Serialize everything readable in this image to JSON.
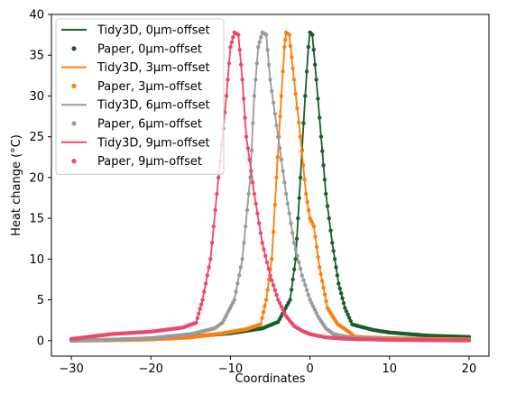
{
  "chart_data": {
    "type": "line",
    "title": "",
    "xlabel": "Coordinates",
    "ylabel": "Heat change (°C)",
    "xlim": [
      -32.5,
      22.5
    ],
    "ylim": [
      -1.9,
      40
    ],
    "xticks": [
      -30,
      -20,
      -10,
      0,
      10,
      20
    ],
    "yticks": [
      0,
      5,
      10,
      15,
      20,
      25,
      30,
      35,
      40
    ],
    "grid": false,
    "legend_position": "top-left",
    "colors": {
      "offset0": "#1a5e2e",
      "offset3": "#ff7f0e",
      "offset6": "#9a9a9a",
      "offset9": "#ea4a6a"
    },
    "series": [
      {
        "name": "Tidy3D, 0µm-offset",
        "kind": "line",
        "color": "#1a5e2e",
        "x": [
          -30,
          -25,
          -20,
          -15,
          -10,
          -6,
          -4,
          -2.5,
          -1.8,
          -1.2,
          -0.6,
          -0.2,
          0,
          0.3,
          0.8,
          1.4,
          2,
          2.8,
          3.6,
          4.4,
          5.3,
          6,
          8,
          10,
          15,
          20
        ],
        "y": [
          0.05,
          0.1,
          0.25,
          0.5,
          0.9,
          1.5,
          2.3,
          5,
          10,
          20,
          30,
          36,
          37.8,
          37.5,
          32,
          25,
          18,
          12,
          7,
          4,
          2,
          1.8,
          1.3,
          1,
          0.6,
          0.45
        ]
      },
      {
        "name": "Paper, 0µm-offset",
        "kind": "scatter",
        "color": "#1a5e2e",
        "x": [
          -30,
          -25,
          -20,
          -15,
          -10,
          -6,
          -4,
          -2.5,
          -1.8,
          -1.2,
          -0.6,
          -0.2,
          0,
          0.3,
          0.8,
          1.4,
          2,
          2.8,
          3.6,
          4.4,
          5.3,
          6,
          8,
          10,
          15,
          20
        ],
        "y": [
          0.05,
          0.1,
          0.25,
          0.5,
          0.9,
          1.5,
          2.3,
          5,
          10,
          20,
          30,
          36,
          37.8,
          37.5,
          32,
          25,
          18,
          12,
          7,
          4,
          2,
          1.8,
          1.3,
          1,
          0.6,
          0.45
        ]
      },
      {
        "name": "Tidy3D, 3µm-offset",
        "kind": "line",
        "color": "#ff7f0e",
        "x": [
          -30,
          -25,
          -20,
          -15,
          -11,
          -8,
          -6.2,
          -5.5,
          -4.8,
          -4.2,
          -3.6,
          -3.2,
          -3,
          -2.6,
          -2,
          -1.2,
          -0.5,
          0,
          0.5,
          1.2,
          2.2,
          3.5,
          5,
          5.6,
          7,
          10,
          15,
          20
        ],
        "y": [
          0,
          0.05,
          0.15,
          0.4,
          0.9,
          1.4,
          2,
          5,
          10,
          20,
          30,
          36,
          37.8,
          37.5,
          32,
          25,
          18,
          15,
          14,
          9,
          4,
          2,
          1,
          0.5,
          0.4,
          0.3,
          0.2,
          0.15
        ]
      },
      {
        "name": "Paper, 3µm-offset",
        "kind": "scatter",
        "color": "#ff7f0e",
        "x": [
          -30,
          -25,
          -20,
          -15,
          -11,
          -8,
          -6.2,
          -5.5,
          -4.8,
          -4.2,
          -3.6,
          -3.2,
          -3,
          -2.6,
          -2,
          -1.2,
          -0.5,
          0,
          0.5,
          1.2,
          2.2,
          3.5,
          5,
          5.6,
          7,
          10,
          15,
          20
        ],
        "y": [
          0,
          0.05,
          0.15,
          0.4,
          0.9,
          1.4,
          2,
          5,
          10,
          20,
          30,
          36,
          37.8,
          37.5,
          32,
          25,
          18,
          15,
          14,
          9,
          4,
          2,
          1,
          0.5,
          0.4,
          0.3,
          0.2,
          0.15
        ]
      },
      {
        "name": "Tidy3D, 6µm-offset",
        "kind": "line",
        "color": "#9a9a9a",
        "x": [
          -30,
          -25,
          -20,
          -15,
          -12,
          -11,
          -9.5,
          -8.5,
          -7.5,
          -7,
          -6.5,
          -6,
          -5.5,
          -5,
          -4,
          -3,
          -2,
          -1,
          0,
          1,
          2,
          3,
          5,
          10,
          15,
          20
        ],
        "y": [
          0,
          0.1,
          0.3,
          0.8,
          1.5,
          2.2,
          5,
          10,
          20,
          30,
          36,
          37.8,
          37.5,
          32,
          25,
          18,
          12,
          8,
          5,
          3,
          1.5,
          0.8,
          0.4,
          0.2,
          0.1,
          0.05
        ]
      },
      {
        "name": "Paper, 6µm-offset",
        "kind": "scatter",
        "color": "#9a9a9a",
        "x": [
          -30,
          -25,
          -20,
          -15,
          -12,
          -11,
          -9.5,
          -8.5,
          -7.5,
          -7,
          -6.5,
          -6,
          -5.5,
          -5,
          -4,
          -3,
          -2,
          -1,
          0,
          1,
          2,
          3,
          5,
          10,
          15,
          20
        ],
        "y": [
          0,
          0.1,
          0.3,
          0.8,
          1.5,
          2.2,
          5,
          10,
          20,
          30,
          36,
          37.8,
          37.5,
          32,
          25,
          18,
          12,
          8,
          5,
          3,
          1.5,
          0.8,
          0.4,
          0.2,
          0.1,
          0.05
        ]
      },
      {
        "name": "Tidy3D, 9µm-offset",
        "kind": "line",
        "color": "#ea4a6a",
        "x": [
          -30,
          -25,
          -20,
          -16,
          -14.3,
          -13.5,
          -12.5,
          -11.5,
          -10.5,
          -10,
          -9.5,
          -9,
          -8.5,
          -8,
          -7,
          -6,
          -5,
          -4,
          -3,
          -2,
          -1,
          0,
          2,
          5,
          10,
          15,
          20
        ],
        "y": [
          0.2,
          0.8,
          1.1,
          1.6,
          2.2,
          5,
          10,
          20,
          30,
          36,
          37.8,
          37.5,
          32,
          25,
          18,
          12,
          8,
          5,
          3,
          1.8,
          1.2,
          0.8,
          0.4,
          0.2,
          0.1,
          0.05,
          0.02
        ]
      },
      {
        "name": "Paper, 9µm-offset",
        "kind": "scatter",
        "color": "#ea4a6a",
        "x": [
          -30,
          -25,
          -20,
          -16,
          -14.3,
          -13.5,
          -12.5,
          -11.5,
          -10.5,
          -10,
          -9.5,
          -9,
          -8.5,
          -8,
          -7,
          -6,
          -5,
          -4,
          -3,
          -2,
          -1,
          0,
          2,
          5,
          10,
          15,
          20
        ],
        "y": [
          0.2,
          0.8,
          1.1,
          1.6,
          2.2,
          5,
          10,
          20,
          30,
          36,
          37.8,
          37.5,
          32,
          25,
          18,
          12,
          8,
          5,
          3,
          1.8,
          1.2,
          0.8,
          0.4,
          0.2,
          0.1,
          0.05,
          0.02
        ]
      }
    ]
  }
}
